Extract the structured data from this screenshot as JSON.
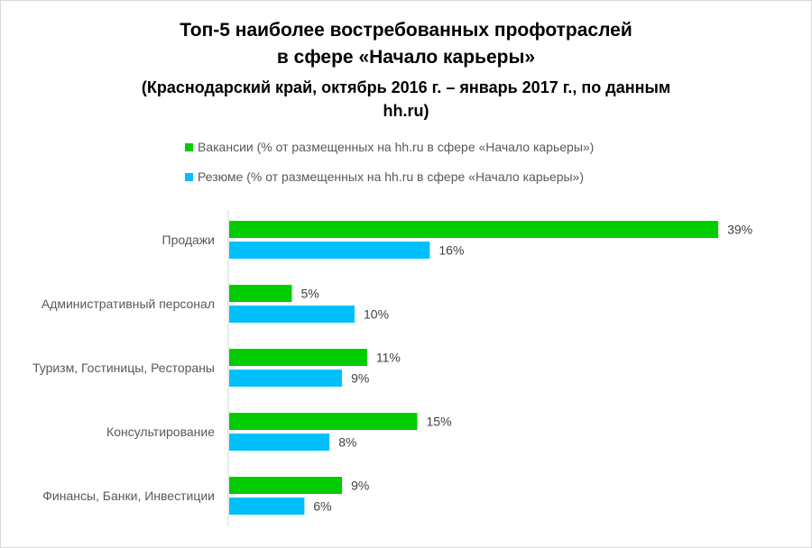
{
  "chart_data": {
    "type": "bar",
    "orientation": "horizontal",
    "title": [
      "Топ-5 наиболее востребованных профотраслей",
      "в сфере «Начало карьеры»"
    ],
    "subtitle": [
      "(Краснодарский край, октябрь 2016 г. – январь 2017 г., по данным",
      "hh.ru)"
    ],
    "categories": [
      "Продажи",
      "Административный персонал",
      "Туризм, Гостиницы, Рестораны",
      "Консультирование",
      "Финансы, Банки, Инвестиции"
    ],
    "series": [
      {
        "name": "Вакансии  (% от размещенных на hh.ru в сфере «Начало карьеры»)",
        "color": "#00CC00",
        "values": [
          39,
          5,
          11,
          15,
          9
        ]
      },
      {
        "name": "Резюме  (% от размещенных на hh.ru в сфере «Начало карьеры»)",
        "color": "#00BFFF",
        "values": [
          16,
          10,
          9,
          8,
          6
        ]
      }
    ],
    "value_suffix": "%",
    "xlim": [
      0,
      39
    ],
    "grid": false,
    "legend_position": "top"
  }
}
